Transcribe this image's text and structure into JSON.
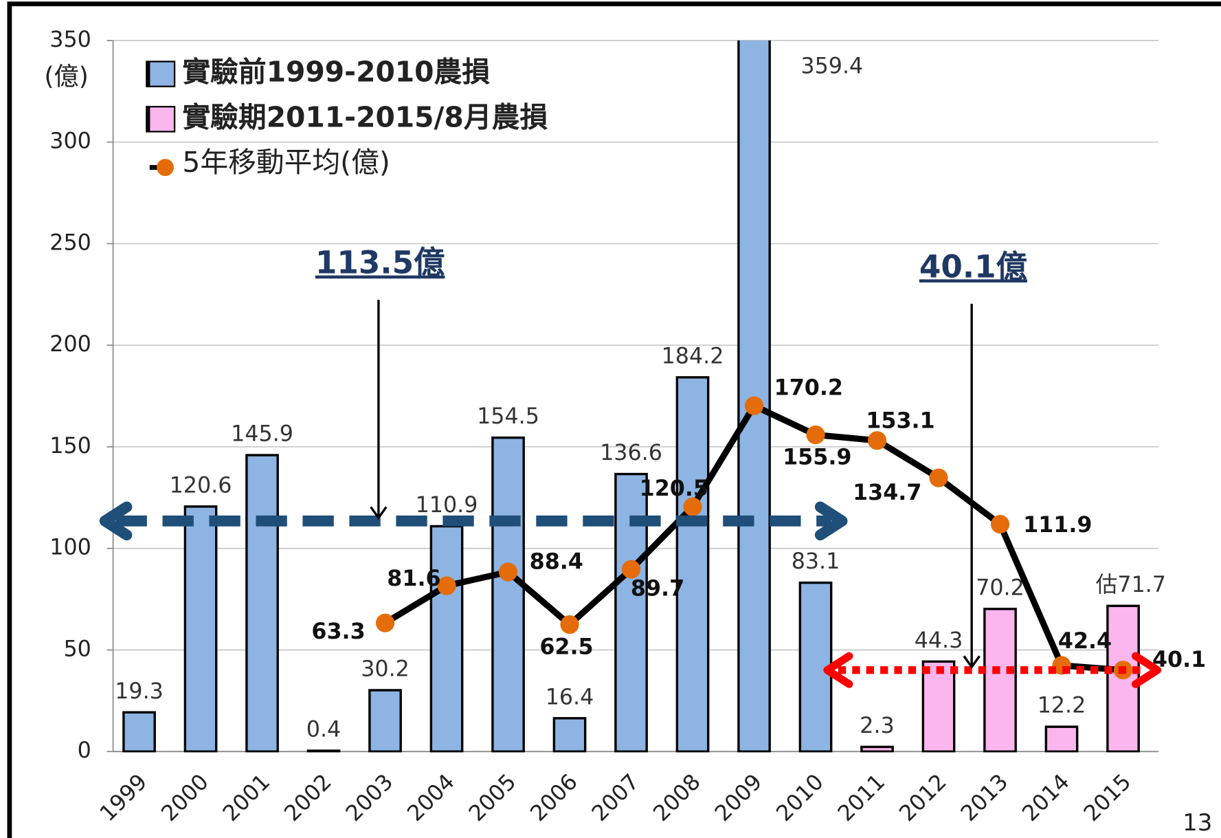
{
  "chart_data": {
    "type": "bar",
    "y_label": "(億)",
    "categories": [
      "1999",
      "2000",
      "2001",
      "2002",
      "2003",
      "2004",
      "2005",
      "2006",
      "2007",
      "2008",
      "2009",
      "2010",
      "2011",
      "2012",
      "2013",
      "2014",
      "2015"
    ],
    "series": [
      {
        "name": "實驗前1999-2010農損",
        "type": "bar",
        "color": "#8db4e2",
        "values": [
          19.3,
          120.6,
          145.9,
          0.4,
          30.2,
          110.9,
          154.5,
          16.4,
          136.6,
          184.2,
          359.4,
          83.1,
          null,
          null,
          null,
          null,
          null
        ]
      },
      {
        "name": "實驗期2011-2015/8月農損",
        "type": "bar",
        "color": "#fbb6ee",
        "values": [
          null,
          null,
          null,
          null,
          null,
          null,
          null,
          null,
          null,
          null,
          null,
          null,
          2.3,
          44.3,
          70.2,
          12.2,
          71.7
        ],
        "value_labels": [
          null,
          null,
          null,
          null,
          null,
          null,
          null,
          null,
          null,
          null,
          null,
          null,
          "2.3",
          "44.3",
          "70.2",
          "12.2",
          "估71.7"
        ]
      },
      {
        "name": "5年移動平均(億)",
        "type": "line",
        "color": "#000000",
        "marker_color": "#e46c0a",
        "values": [
          null,
          null,
          null,
          null,
          63.3,
          81.6,
          88.4,
          62.5,
          89.7,
          120.5,
          170.2,
          155.9,
          153.1,
          134.7,
          111.9,
          42.4,
          40.1
        ]
      }
    ],
    "annotations": [
      {
        "label": "113.5億",
        "value": 113.5,
        "color": "#1f4e79"
      },
      {
        "label": "40.1億",
        "value": 40.1,
        "color": "#ff0000"
      }
    ],
    "page_number": "13",
    "ylim": [
      0,
      350
    ],
    "yticks": [
      0,
      50,
      100,
      150,
      200,
      250,
      300,
      350
    ],
    "grid": true
  }
}
